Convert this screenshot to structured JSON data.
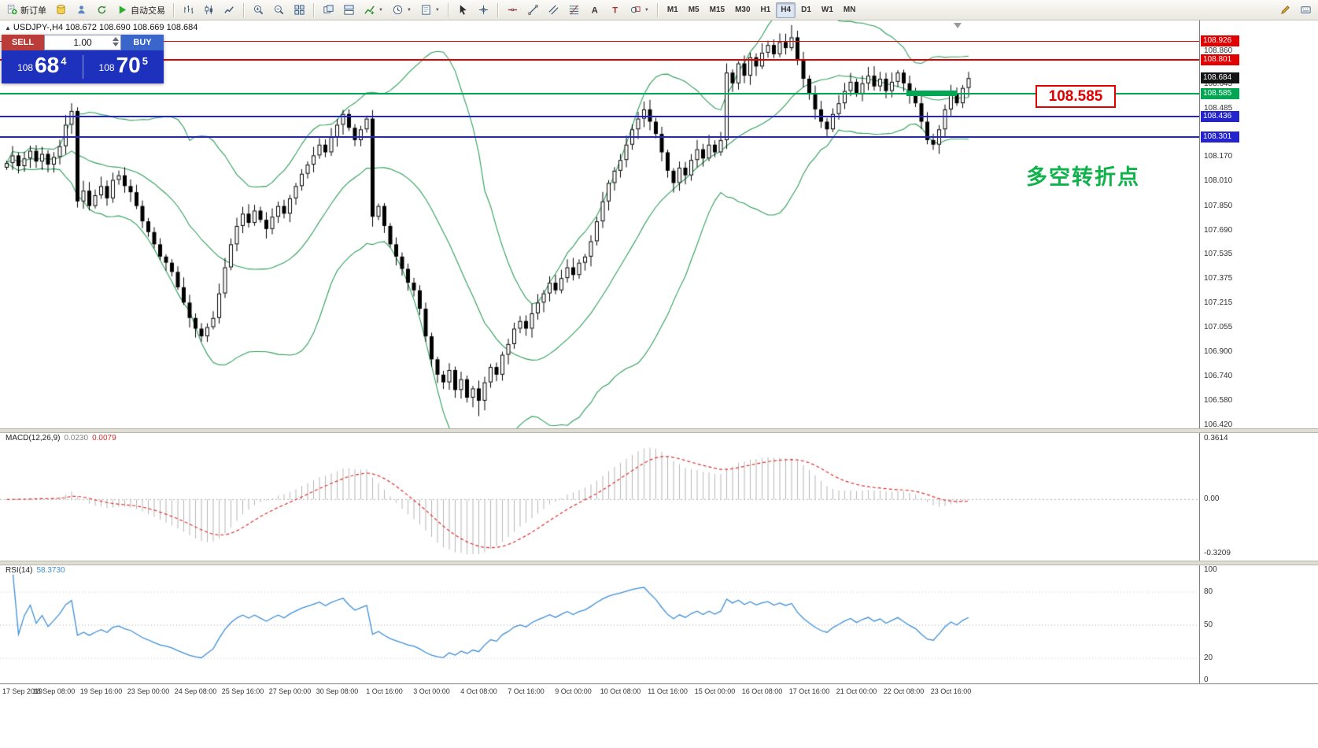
{
  "toolbar": {
    "new_order_label": "新订单",
    "auto_trading_label": "自动交易",
    "timeframes": [
      "M1",
      "M5",
      "M15",
      "M30",
      "H1",
      "H4",
      "D1",
      "W1",
      "MN"
    ],
    "active_timeframe": "H4"
  },
  "chart": {
    "symbol_arrow": "▲",
    "symbol_header": "USDJPY-,H4  108.672 108.690 108.669 108.684",
    "annotation": "多空转折点",
    "price_label_box": "108.585"
  },
  "quote_panel": {
    "sell_label": "SELL",
    "buy_label": "BUY",
    "volume": "1.00",
    "sell_price_main": "108",
    "sell_price_big": "68",
    "sell_price_pips": "4",
    "buy_price_main": "108",
    "buy_price_big": "70",
    "buy_price_pips": "5"
  },
  "macd": {
    "title": "MACD(12,26,9)",
    "value_main": "0.0230",
    "value_signal": "0.0079"
  },
  "rsi": {
    "title": "RSI(14)",
    "value": "58.3730"
  },
  "colors": {
    "panel_blue": "#1e31bd",
    "sell_red": "#bb3d3a",
    "buy_blue": "#3a66cc",
    "line_red": "#e10000",
    "line_green": "#00a651",
    "line_blue": "#2424cf",
    "current_price_tag": "#141414",
    "annotation_green": "#10b24c",
    "bollinger_green": "#2f9e5b",
    "candle_up": "#ffffff",
    "candle_down": "#000000",
    "macd_hist": "#b6b6b6",
    "macd_signal": "#e03030",
    "rsi_line": "#3f8fd6"
  },
  "chart_data": {
    "type": "candlestick",
    "symbol": "USDJPY-",
    "timeframe": "H4",
    "ohlc_display": {
      "open": "108.672",
      "high": "108.690",
      "low": "108.669",
      "close": "108.684"
    },
    "ylim": [
      106.4,
      109.06
    ],
    "opens_from_prev_close": true,
    "closes": [
      108.13,
      108.18,
      108.11,
      108.16,
      108.21,
      108.14,
      108.19,
      108.12,
      108.17,
      108.24,
      108.38,
      108.47,
      107.88,
      107.95,
      107.85,
      107.92,
      107.98,
      107.9,
      108.02,
      108.05,
      107.98,
      107.94,
      107.85,
      107.75,
      107.68,
      107.6,
      107.52,
      107.48,
      107.42,
      107.32,
      107.22,
      107.12,
      107.05,
      107.0,
      107.06,
      107.12,
      107.28,
      107.45,
      107.6,
      107.72,
      107.8,
      107.74,
      107.82,
      107.76,
      107.7,
      107.78,
      107.85,
      107.8,
      107.9,
      107.98,
      108.06,
      108.12,
      108.18,
      108.25,
      108.2,
      108.3,
      108.38,
      108.45,
      108.36,
      108.28,
      108.35,
      108.42,
      107.78,
      107.85,
      107.72,
      107.6,
      107.52,
      107.44,
      107.35,
      107.3,
      107.18,
      107.0,
      106.85,
      106.75,
      106.7,
      106.78,
      106.65,
      106.72,
      106.6,
      106.66,
      106.58,
      106.7,
      106.8,
      106.75,
      106.88,
      106.95,
      107.05,
      107.1,
      107.05,
      107.15,
      107.22,
      107.28,
      107.35,
      107.3,
      107.38,
      107.45,
      107.4,
      107.48,
      107.52,
      107.62,
      107.75,
      107.88,
      108.0,
      108.08,
      108.15,
      108.25,
      108.35,
      108.42,
      108.48,
      108.4,
      108.32,
      108.2,
      108.08,
      108.0,
      108.1,
      108.05,
      108.15,
      108.22,
      108.16,
      108.25,
      108.2,
      108.28,
      108.72,
      108.65,
      108.78,
      108.7,
      108.82,
      108.76,
      108.85,
      108.9,
      108.84,
      108.92,
      108.88,
      108.95,
      108.8,
      108.68,
      108.58,
      108.48,
      108.4,
      108.35,
      108.45,
      108.52,
      108.6,
      108.66,
      108.58,
      108.65,
      108.7,
      108.63,
      108.68,
      108.6,
      108.66,
      108.72,
      108.65,
      108.58,
      108.52,
      108.4,
      108.28,
      108.25,
      108.35,
      108.48,
      108.58,
      108.52,
      108.62,
      108.684
    ],
    "wick_overrides": {
      "11": {
        "high": 108.52
      },
      "80": {
        "low": 106.48
      },
      "122": {
        "high": 108.78
      },
      "133": {
        "high": 109.03
      }
    },
    "overlays": {
      "bollinger_bands": {
        "period": 20,
        "deviation": 2
      }
    },
    "horizontal_lines": [
      {
        "value": 108.926,
        "tag": "108.926",
        "color": "#e10000",
        "thickness": 1
      },
      {
        "value": 108.801,
        "tag": "108.801",
        "color": "#e10000",
        "thickness": 2
      },
      {
        "value": 108.585,
        "tag": "108.585",
        "color": "#00a651",
        "thickness": 2,
        "highlight_segment": true
      },
      {
        "value": 108.436,
        "tag": "108.436",
        "color": "#2424cf",
        "thickness": 2
      },
      {
        "value": 108.301,
        "tag": "108.301",
        "color": "#2424cf",
        "thickness": 2
      }
    ],
    "current_price_tag": {
      "text": "108.684",
      "value": 108.684,
      "color": "#141414"
    },
    "price_axis_labels": [
      "108.860",
      "108.645",
      "108.485",
      "108.170",
      "108.010",
      "107.850",
      "107.690",
      "107.535",
      "107.375",
      "107.215",
      "107.055",
      "106.900",
      "106.740",
      "106.580",
      "106.420"
    ],
    "time_axis_labels": [
      "17 Sep 2019",
      "18 Sep 08:00",
      "19 Sep 16:00",
      "23 Sep 00:00",
      "24 Sep 08:00",
      "25 Sep 16:00",
      "27 Sep 00:00",
      "30 Sep 08:00",
      "1 Oct 16:00",
      "3 Oct 00:00",
      "4 Oct 08:00",
      "7 Oct 16:00",
      "9 Oct 00:00",
      "10 Oct 08:00",
      "11 Oct 16:00",
      "15 Oct 00:00",
      "16 Oct 08:00",
      "17 Oct 16:00",
      "21 Oct 00:00",
      "22 Oct 08:00",
      "23 Oct 16:00"
    ],
    "sub_panels": [
      {
        "type": "macd_histogram",
        "name": "MACD",
        "params": "12,26,9",
        "values": [
          "0.0230",
          "0.0079"
        ],
        "axis_labels": [
          "0.3614",
          "0.00",
          "-0.3209"
        ],
        "axis_range": [
          -0.3209,
          0.3614
        ]
      },
      {
        "type": "rsi_line",
        "name": "RSI",
        "params": "14",
        "value": "58.3730",
        "axis_labels": [
          "100",
          "80",
          "50",
          "20",
          "0"
        ],
        "levels": [
          80,
          50,
          20
        ],
        "axis_range": [
          0,
          100
        ]
      }
    ]
  }
}
